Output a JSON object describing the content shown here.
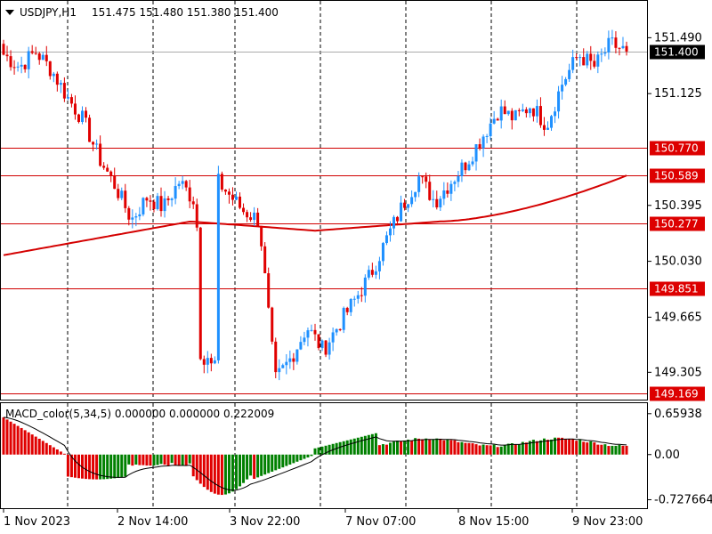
{
  "header": {
    "symbol": "USDJPY,H1",
    "ohlc": "151.475 151.480 151.380 151.400",
    "menu_icon": "triangle-down-icon"
  },
  "price_axis": {
    "ticks": [
      "151.490",
      "151.125",
      "150.395",
      "150.030",
      "149.665",
      "149.305"
    ],
    "tick_values": [
      151.49,
      151.125,
      150.395,
      150.03,
      149.665,
      149.305
    ],
    "range": [
      149.15,
      151.62
    ]
  },
  "current_price": {
    "label": "151.400",
    "value": 151.4,
    "color": "#000000"
  },
  "levels": [
    {
      "label": "150.770",
      "value": 150.77
    },
    {
      "label": "150.589",
      "value": 150.589
    },
    {
      "label": "150.277",
      "value": 150.277
    },
    {
      "label": "149.851",
      "value": 149.851
    },
    {
      "label": "149.169",
      "value": 149.169
    }
  ],
  "macd": {
    "title": "MACD_color(5,34,5) 0.000000 0.000000 0.222009",
    "ticks": [
      "0.65938",
      "0.00",
      "-0.727664"
    ],
    "tick_values": [
      0.65938,
      0.0,
      -0.727664
    ],
    "range": [
      -0.85,
      0.8
    ]
  },
  "time_axis": {
    "labels": [
      "1 Nov 2023",
      "2 Nov 14:00",
      "3 Nov 22:00",
      "7 Nov 07:00",
      "8 Nov 15:00",
      "9 Nov 23:00"
    ]
  },
  "colors": {
    "bull": "#1e90ff",
    "bear": "#e00000",
    "ma": "#d40000",
    "level_line": "#d00000",
    "level_label_bg": "#dd0000",
    "macd_up": "#008000",
    "macd_down": "#e00000",
    "signal": "#000000",
    "grid": "#000000"
  },
  "chart_data": {
    "type": "candlestick",
    "title": "USDJPY,H1",
    "series_anchor_closes": [
      151.38,
      151.3,
      151.4,
      151.28,
      151.1,
      150.95,
      150.7,
      150.52,
      150.3,
      150.45,
      150.38,
      150.55,
      150.42,
      150.6,
      150.48,
      150.36,
      150.3,
      149.25,
      149.4,
      149.6,
      149.45,
      149.62,
      149.78,
      149.95,
      150.18,
      150.4,
      150.58,
      150.42,
      150.55,
      150.68,
      150.85,
      151.02,
      150.96,
      151.05,
      150.92,
      151.2,
      151.38,
      151.3,
      151.45,
      151.4
    ],
    "ylim": [
      149.15,
      151.62
    ]
  }
}
